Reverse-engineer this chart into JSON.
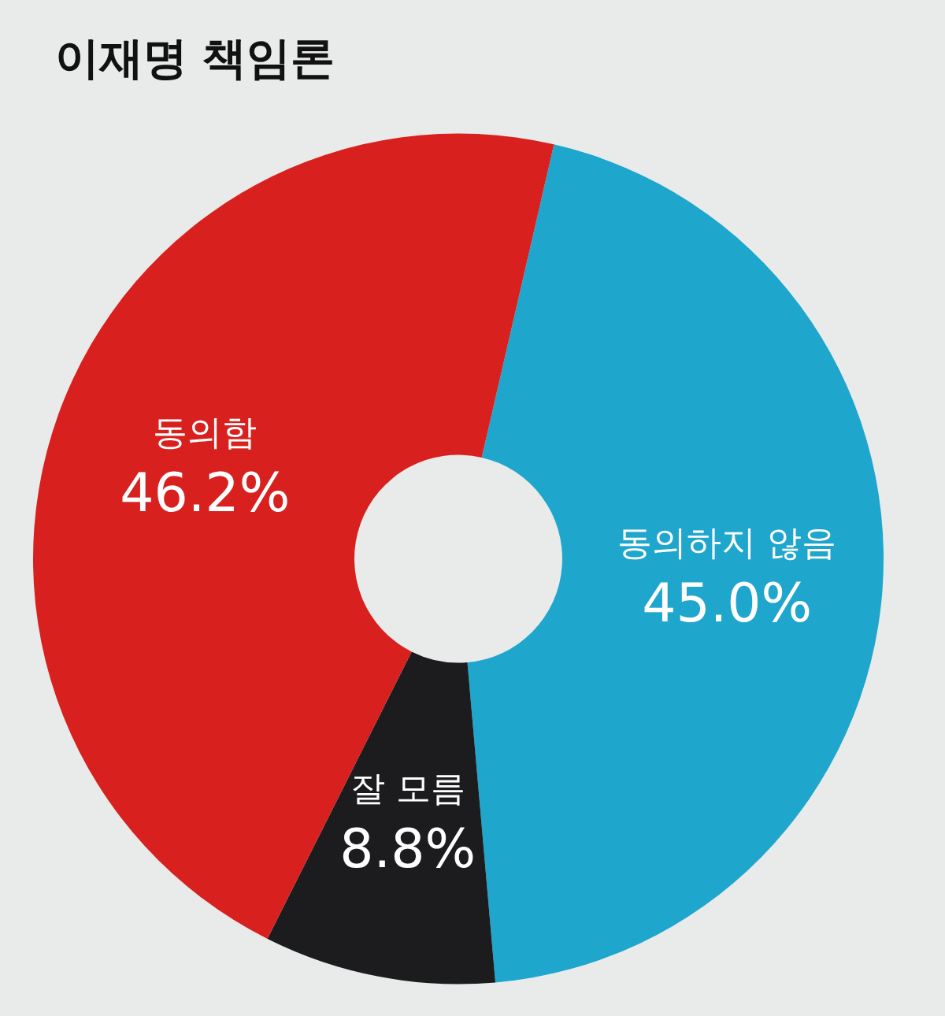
{
  "chart_data": {
    "type": "donut",
    "title": "이재명 책임론",
    "categories": [
      "동의하지 않음",
      "잘 모름",
      "동의함"
    ],
    "values": [
      45.0,
      8.8,
      46.2
    ],
    "colors": [
      "#1ea6cc",
      "#1c1c1e",
      "#d8211e"
    ],
    "value_labels": [
      "45.0%",
      "8.8%",
      "46.2%"
    ],
    "legend": false
  }
}
